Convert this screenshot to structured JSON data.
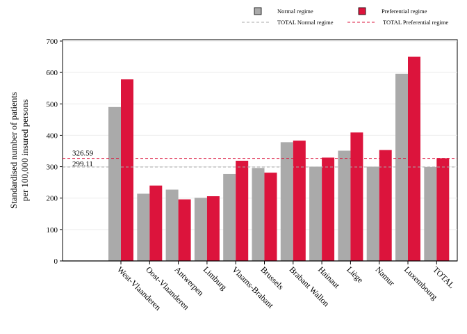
{
  "chart_data": {
    "type": "bar",
    "categories": [
      "West-Vlaanderen",
      "Oost-Vlaanderen",
      "Antwerpen",
      "Limburg",
      "Vlaams-Brabant",
      "Brussels",
      "Brabant Wallon",
      "Hainaut",
      "Liège",
      "Namur",
      "Luxembourg",
      "TOTAL"
    ],
    "series": [
      {
        "name": "Normal regime",
        "color": "#aaaaaa",
        "values": [
          490,
          214,
          227,
          201,
          277,
          296,
          378,
          300,
          351,
          300,
          596,
          299
        ]
      },
      {
        "name": "Preferential regime",
        "color": "#dc143c",
        "values": [
          578,
          240,
          196,
          206,
          319,
          281,
          383,
          329,
          409,
          353,
          650,
          327
        ]
      }
    ],
    "reference_lines": [
      {
        "name": "TOTAL Normal regime",
        "value": 299.11,
        "label": "299.11",
        "color": "#aaaaaa",
        "style": "dashed"
      },
      {
        "name": "TOTAL Preferential regime",
        "value": 326.59,
        "label": "326.59",
        "color": "#dc143c",
        "style": "dashed"
      }
    ],
    "ylabel": [
      "Standardised number of patients",
      "per 100,000 insured persons"
    ],
    "xlabel": "",
    "ylim": [
      0,
      700
    ],
    "yticks": [
      "0",
      "100",
      "200",
      "300",
      "400",
      "500",
      "600",
      "700"
    ],
    "grid": true,
    "legend_position": "top-right"
  }
}
